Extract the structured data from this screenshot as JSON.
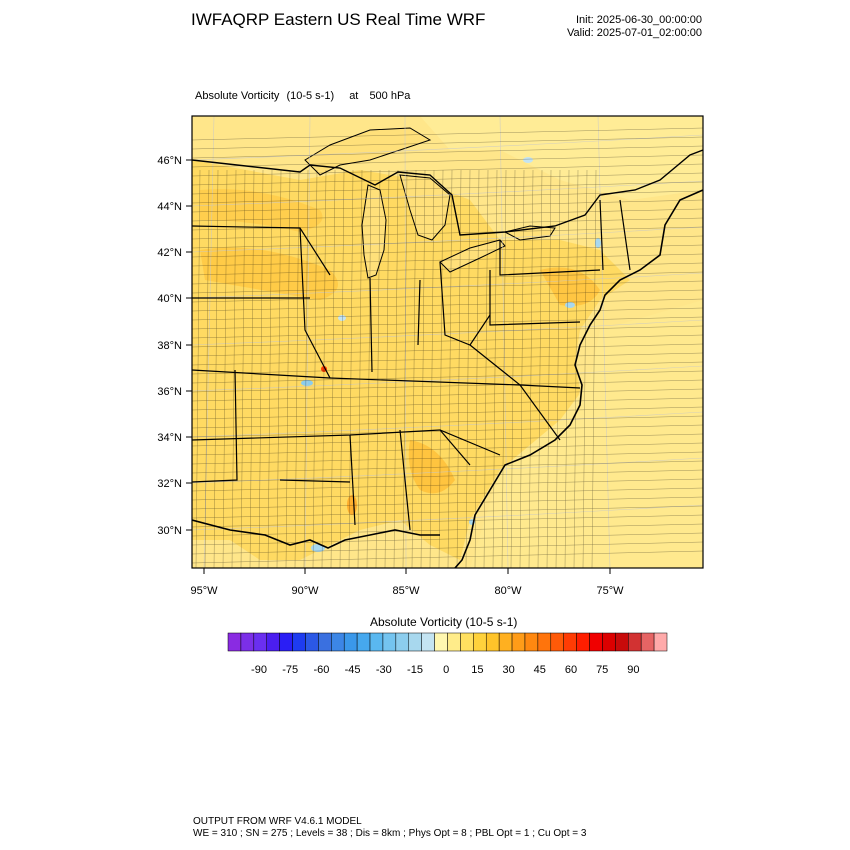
{
  "header": {
    "title": "IWFAQRP Eastern US Real Time WRF",
    "init": "Init: 2025-06-30_00:00:00",
    "valid": "Valid: 2025-07-01_02:00:00"
  },
  "field": {
    "name": "Absolute Vorticity",
    "units": "(10-5 s-1)",
    "at": "at",
    "level": "500 hPa"
  },
  "axes": {
    "lat_labels": [
      "46°N",
      "44°N",
      "42°N",
      "40°N",
      "38°N",
      "36°N",
      "34°N",
      "32°N",
      "30°N"
    ],
    "lon_labels": [
      "95°W",
      "90°W",
      "85°W",
      "80°W",
      "75°W"
    ]
  },
  "colorbar": {
    "title": "Absolute Vorticity  (10-5 s-1)",
    "tick_labels": [
      "-90",
      "-75",
      "-60",
      "-45",
      "-30",
      "-15",
      "0",
      "15",
      "30",
      "45",
      "60",
      "75",
      "90"
    ],
    "colors": [
      "#8a2be2",
      "#7b2fe8",
      "#6a2ff0",
      "#4b1ef0",
      "#2a1ef5",
      "#1e3cf0",
      "#2b58e6",
      "#3a70e0",
      "#3c86e6",
      "#3a98ea",
      "#46a8ee",
      "#5ab8f0",
      "#74c4f0",
      "#8ccdee",
      "#a8d8ee",
      "#c4e4f2",
      "#fff7b0",
      "#ffec8a",
      "#ffe060",
      "#ffd23c",
      "#ffc42a",
      "#ffb020",
      "#ff9c18",
      "#ff8810",
      "#ff740c",
      "#ff5a08",
      "#ff3c04",
      "#ff1e00",
      "#f00000",
      "#dc0000",
      "#c80a0a",
      "#d23232",
      "#e66464",
      "#ffaaaa"
    ]
  },
  "footer": {
    "line1": "OUTPUT FROM WRF V4.6.1 MODEL",
    "line2": "WE = 310 ; SN = 275 ; Levels = 38 ; Dis = 8km ; Phys Opt = 8 ; PBL Opt = 1 ; Cu Opt = 3"
  }
}
